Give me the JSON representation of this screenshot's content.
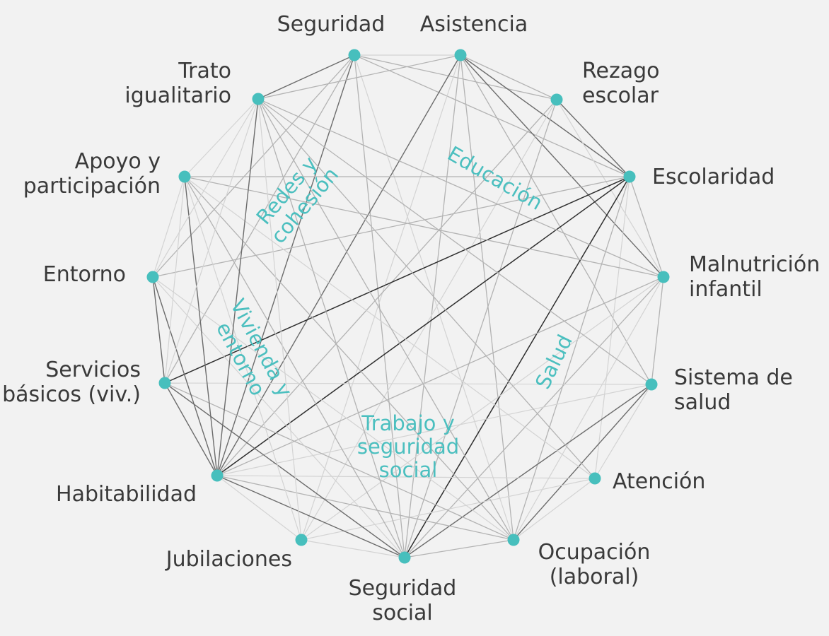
{
  "colors": {
    "background": "#f2f2f2",
    "node": "#47bfbd",
    "group_text": "#4bbfbf",
    "label_text": "#3a3a3a"
  },
  "nodes": [
    {
      "id": "seguridad",
      "lines": [
        "Seguridad"
      ]
    },
    {
      "id": "asistencia",
      "lines": [
        "Asistencia"
      ]
    },
    {
      "id": "rezago",
      "lines": [
        "Rezago",
        "escolar"
      ]
    },
    {
      "id": "escolaridad",
      "lines": [
        "Escolaridad"
      ]
    },
    {
      "id": "malnutricion",
      "lines": [
        "Malnutrición",
        "infantil"
      ]
    },
    {
      "id": "sistema_salud",
      "lines": [
        "Sistema de",
        "salud"
      ]
    },
    {
      "id": "atencion",
      "lines": [
        "Atención"
      ]
    },
    {
      "id": "ocupacion",
      "lines": [
        "Ocupación",
        "(laboral)"
      ]
    },
    {
      "id": "seguridad_social",
      "lines": [
        "Seguridad",
        "social"
      ]
    },
    {
      "id": "jubilaciones",
      "lines": [
        "Jubilaciones"
      ]
    },
    {
      "id": "habitabilidad",
      "lines": [
        "Habitabilidad"
      ]
    },
    {
      "id": "servicios",
      "lines": [
        "Servicios",
        "básicos (viv.)"
      ]
    },
    {
      "id": "entorno",
      "lines": [
        "Entorno"
      ]
    },
    {
      "id": "apoyo",
      "lines": [
        "Apoyo y",
        "participación"
      ]
    },
    {
      "id": "trato",
      "lines": [
        "Trato",
        "igualitario"
      ]
    }
  ],
  "groups": [
    {
      "id": "redes",
      "lines": [
        "Redes y",
        "cohesión"
      ]
    },
    {
      "id": "educacion",
      "lines": [
        "Educación"
      ]
    },
    {
      "id": "vivienda",
      "lines": [
        "Vivienda y",
        "entorno"
      ]
    },
    {
      "id": "salud",
      "lines": [
        "Salud"
      ]
    },
    {
      "id": "trabajo",
      "lines": [
        "Trabajo y",
        "seguridad",
        "social"
      ]
    }
  ],
  "edges": [
    [
      "seguridad",
      "asistencia",
      "l"
    ],
    [
      "asistencia",
      "rezago",
      "m"
    ],
    [
      "rezago",
      "escolaridad",
      "d"
    ],
    [
      "escolaridad",
      "malnutricion",
      "m"
    ],
    [
      "malnutricion",
      "sistema_salud",
      "m"
    ],
    [
      "sistema_salud",
      "atencion",
      "l"
    ],
    [
      "atencion",
      "ocupacion",
      "l"
    ],
    [
      "ocupacion",
      "seguridad_social",
      "m"
    ],
    [
      "seguridad_social",
      "jubilaciones",
      "l"
    ],
    [
      "jubilaciones",
      "habitabilidad",
      "l"
    ],
    [
      "habitabilidad",
      "servicios",
      "d"
    ],
    [
      "servicios",
      "entorno",
      "d"
    ],
    [
      "entorno",
      "apoyo",
      "l"
    ],
    [
      "apoyo",
      "trato",
      "l"
    ],
    [
      "trato",
      "seguridad",
      "d"
    ],
    [
      "seguridad",
      "habitabilidad",
      "d"
    ],
    [
      "seguridad",
      "entorno",
      "m"
    ],
    [
      "seguridad",
      "servicios",
      "m"
    ],
    [
      "seguridad",
      "rezago",
      "m"
    ],
    [
      "seguridad",
      "escolaridad",
      "m"
    ],
    [
      "seguridad",
      "seguridad_social",
      "m"
    ],
    [
      "seguridad",
      "ocupacion",
      "l"
    ],
    [
      "asistencia",
      "trato",
      "m"
    ],
    [
      "asistencia",
      "escolaridad",
      "d"
    ],
    [
      "asistencia",
      "malnutricion",
      "d"
    ],
    [
      "asistencia",
      "habitabilidad",
      "d"
    ],
    [
      "asistencia",
      "seguridad_social",
      "m"
    ],
    [
      "asistencia",
      "sistema_salud",
      "m"
    ],
    [
      "asistencia",
      "ocupacion",
      "m"
    ],
    [
      "asistencia",
      "jubilaciones",
      "l"
    ],
    [
      "rezago",
      "habitabilidad",
      "m"
    ],
    [
      "rezago",
      "seguridad_social",
      "m"
    ],
    [
      "rezago",
      "malnutricion",
      "l"
    ],
    [
      "rezago",
      "jubilaciones",
      "l"
    ],
    [
      "escolaridad",
      "apoyo",
      "m"
    ],
    [
      "escolaridad",
      "entorno",
      "m"
    ],
    [
      "escolaridad",
      "servicios",
      "k"
    ],
    [
      "escolaridad",
      "habitabilidad",
      "k"
    ],
    [
      "escolaridad",
      "seguridad_social",
      "k"
    ],
    [
      "escolaridad",
      "ocupacion",
      "m"
    ],
    [
      "escolaridad",
      "atencion",
      "l"
    ],
    [
      "malnutricion",
      "trato",
      "m"
    ],
    [
      "malnutricion",
      "apoyo",
      "m"
    ],
    [
      "malnutricion",
      "habitabilidad",
      "m"
    ],
    [
      "malnutricion",
      "seguridad_social",
      "m"
    ],
    [
      "malnutricion",
      "ocupacion",
      "l"
    ],
    [
      "malnutricion",
      "jubilaciones",
      "l"
    ],
    [
      "sistema_salud",
      "trato",
      "m"
    ],
    [
      "sistema_salud",
      "seguridad_social",
      "d"
    ],
    [
      "sistema_salud",
      "habitabilidad",
      "l"
    ],
    [
      "sistema_salud",
      "ocupacion",
      "d"
    ],
    [
      "sistema_salud",
      "servicios",
      "l"
    ],
    [
      "atencion",
      "trato",
      "m"
    ],
    [
      "atencion",
      "habitabilidad",
      "l"
    ],
    [
      "atencion",
      "jubilaciones",
      "l"
    ],
    [
      "atencion",
      "apoyo",
      "l"
    ],
    [
      "ocupacion",
      "trato",
      "m"
    ],
    [
      "ocupacion",
      "apoyo",
      "m"
    ],
    [
      "ocupacion",
      "habitabilidad",
      "m"
    ],
    [
      "ocupacion",
      "servicios",
      "m"
    ],
    [
      "ocupacion",
      "entorno",
      "l"
    ],
    [
      "seguridad_social",
      "servicios",
      "d"
    ],
    [
      "seguridad_social",
      "habitabilidad",
      "d"
    ],
    [
      "seguridad_social",
      "trato",
      "m"
    ],
    [
      "seguridad_social",
      "apoyo",
      "m"
    ],
    [
      "seguridad_social",
      "entorno",
      "l"
    ],
    [
      "jubilaciones",
      "apoyo",
      "l"
    ],
    [
      "jubilaciones",
      "trato",
      "l"
    ],
    [
      "habitabilidad",
      "apoyo",
      "d"
    ],
    [
      "habitabilidad",
      "entorno",
      "d"
    ],
    [
      "habitabilidad",
      "trato",
      "d"
    ],
    [
      "servicios",
      "trato",
      "l"
    ],
    [
      "servicios",
      "apoyo",
      "l"
    ],
    [
      "entorno",
      "trato",
      "l"
    ]
  ]
}
